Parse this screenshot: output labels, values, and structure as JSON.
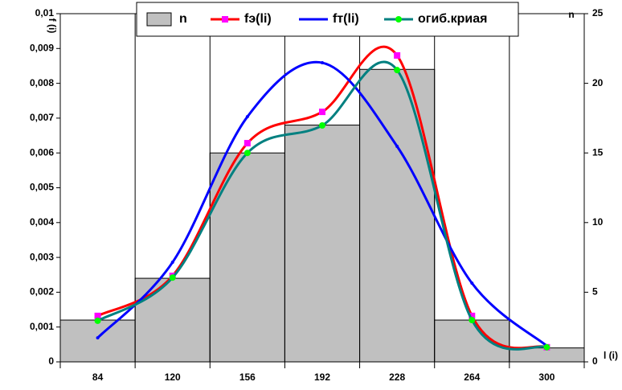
{
  "chart_data": {
    "type": "bar",
    "y_label": "f (i)",
    "y2_label": "n",
    "x_label": "l (i)",
    "categories": [
      "84",
      "120",
      "156",
      "192",
      "228",
      "264",
      "300"
    ],
    "series": [
      {
        "name": "n",
        "type": "bar",
        "axis": "y2",
        "color": "#c0c0c0",
        "values": [
          3,
          6,
          15,
          17,
          21,
          3,
          1
        ]
      },
      {
        "name": "fэ(li)",
        "type": "line",
        "color": "#ff0000",
        "marker_color": "#ff00ff",
        "values": [
          0.00132,
          0.00247,
          0.00628,
          0.00718,
          0.0088,
          0.00132,
          0.00042
        ]
      },
      {
        "name": "fт(li)",
        "type": "line",
        "color": "#0000ff",
        "marker_color": "#0000ff",
        "values": [
          0.00069,
          0.00286,
          0.00704,
          0.00859,
          0.00619,
          0.00226,
          0.00046
        ]
      },
      {
        "name": "огиб.криая",
        "type": "line",
        "color": "#008080",
        "marker_color": "#00ff00",
        "values": [
          0.00118,
          0.00242,
          0.006,
          0.00679,
          0.00838,
          0.0012,
          0.00042
        ]
      }
    ],
    "ylim": [
      0,
      0.01
    ],
    "yticks": [
      0,
      {
        "value": 0.001,
        "label": "0,001"
      },
      {
        "value": 0.002,
        "label": "0,002"
      },
      {
        "value": 0.003,
        "label": "0,003"
      },
      {
        "value": 0.004,
        "label": "0,004"
      },
      {
        "value": 0.005,
        "label": "0,005"
      },
      {
        "value": 0.006,
        "label": "0,006"
      },
      {
        "value": 0.007,
        "label": "0,007"
      },
      {
        "value": 0.008,
        "label": "0,008"
      },
      {
        "value": 0.009,
        "label": "0,009"
      },
      {
        "value": 0.01,
        "label": "0,01"
      }
    ],
    "y2lim": [
      0,
      25
    ],
    "y2ticks": [
      0,
      5,
      10,
      15,
      20,
      25
    ],
    "legend": "top"
  }
}
